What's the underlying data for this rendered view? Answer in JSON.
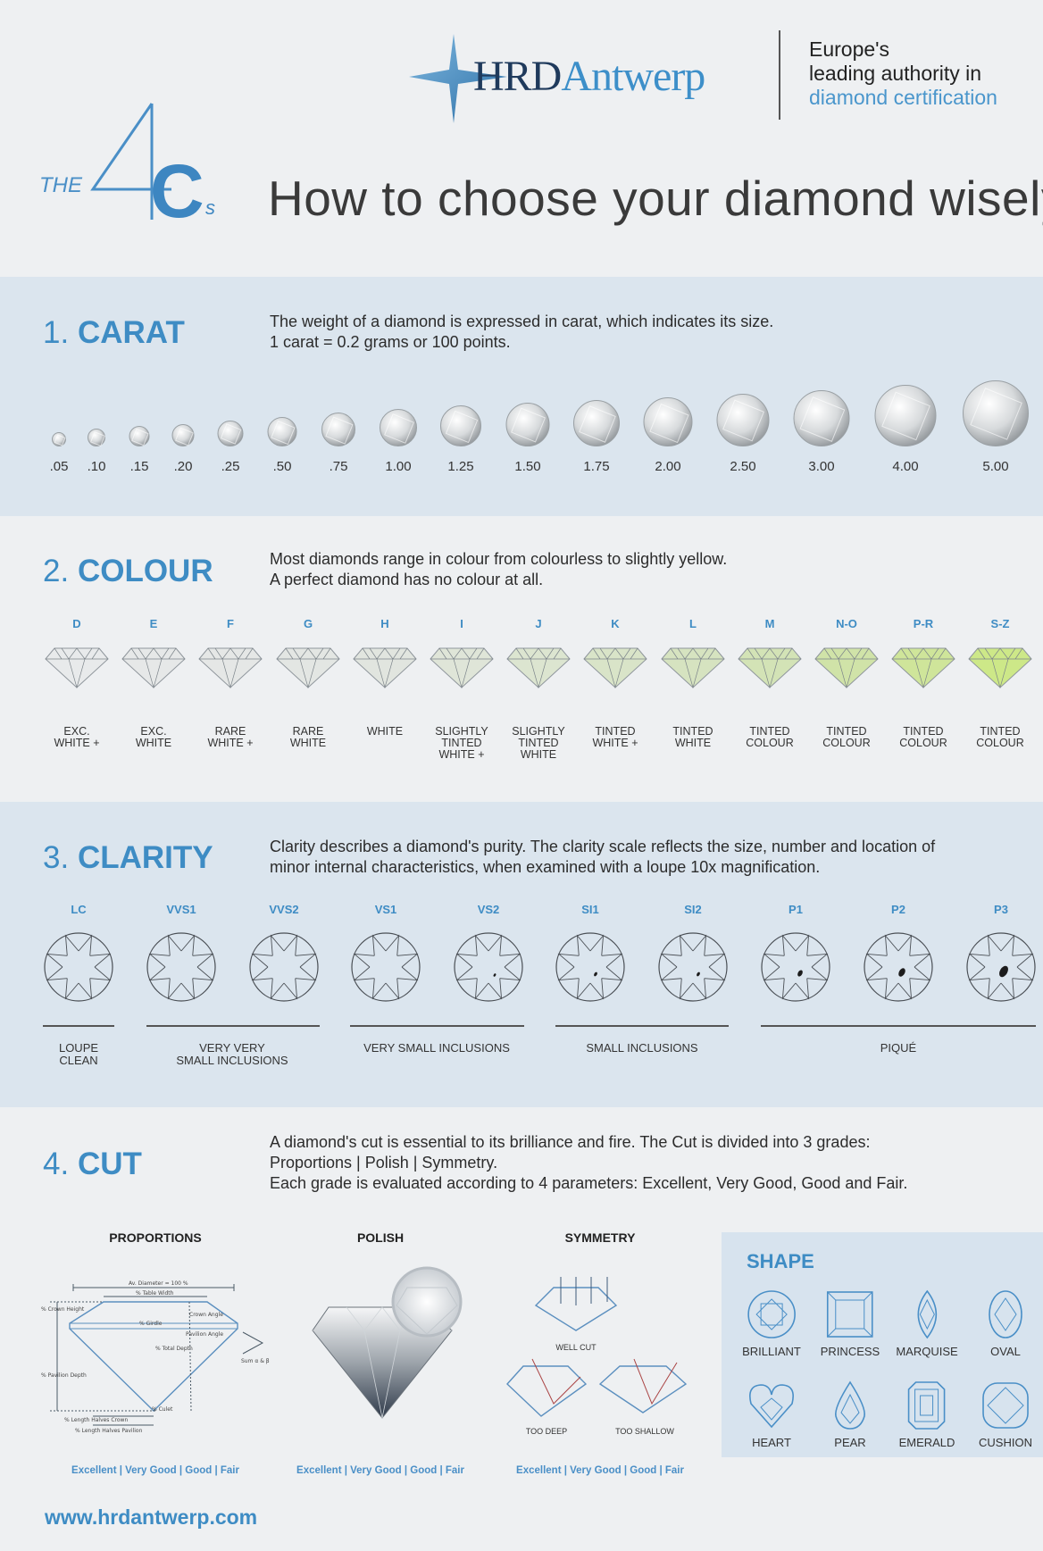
{
  "header": {
    "logo_hrd": "HRD",
    "logo_antwerp": "Antwerp",
    "tagline_line1": "Europe's",
    "tagline_line2": "leading authority in",
    "tagline_line3": "diamond certification",
    "the": "THE",
    "four": "4",
    "c": "C",
    "s": "s",
    "title": "How to choose your diamond wisely"
  },
  "carat": {
    "number": "1.",
    "title": "CARAT",
    "desc1": "The weight of a diamond is expressed in carat, which indicates its size.",
    "desc2": "1 carat = 0.2 grams or 100 points.",
    "weights": [
      ".05",
      ".10",
      ".15",
      ".20",
      ".25",
      ".50",
      ".75",
      "1.00",
      "1.25",
      "1.50",
      "1.75",
      "2.00",
      "2.50",
      "3.00",
      "4.00",
      "5.00"
    ]
  },
  "colour": {
    "number": "2.",
    "title": "COLOUR",
    "desc1": "Most diamonds range in colour from colourless to slightly yellow.",
    "desc2": "A perfect diamond has no colour at all.",
    "grades": [
      {
        "letter": "D",
        "label": "EXC.\nWHITE +",
        "tint": "#e8eaeb"
      },
      {
        "letter": "E",
        "label": "EXC.\nWHITE",
        "tint": "#e6e8e8"
      },
      {
        "letter": "F",
        "label": "RARE\nWHITE +",
        "tint": "#e5e7e6"
      },
      {
        "letter": "G",
        "label": "RARE\nWHITE",
        "tint": "#e3e6e3"
      },
      {
        "letter": "H",
        "label": "WHITE",
        "tint": "#e1e5df"
      },
      {
        "letter": "I",
        "label": "SLIGHTLY\nTINTED\nWHITE +",
        "tint": "#dfe5d8"
      },
      {
        "letter": "J",
        "label": "SLIGHTLY\nTINTED\nWHITE",
        "tint": "#dce5d0"
      },
      {
        "letter": "K",
        "label": "TINTED\nWHITE +",
        "tint": "#d9e4c8"
      },
      {
        "letter": "L",
        "label": "TINTED\nWHITE",
        "tint": "#d6e3c0"
      },
      {
        "letter": "M",
        "label": "TINTED\nCOLOUR",
        "tint": "#d3e3b6"
      },
      {
        "letter": "N-O",
        "label": "TINTED\nCOLOUR",
        "tint": "#d0e3a8"
      },
      {
        "letter": "P-R",
        "label": "TINTED\nCOLOUR",
        "tint": "#cfe59a"
      },
      {
        "letter": "S-Z",
        "label": "TINTED\nCOLOUR",
        "tint": "#cde888"
      }
    ]
  },
  "clarity": {
    "number": "3.",
    "title": "CLARITY",
    "desc1": "Clarity describes a diamond's purity. The clarity scale reflects the size, number and location of",
    "desc2": "minor internal characteristics, when examined with a loupe 10x magnification.",
    "grades": [
      "LC",
      "VVS1",
      "VVS2",
      "VS1",
      "VS2",
      "SI1",
      "SI2",
      "P1",
      "P2",
      "P3"
    ],
    "groups": [
      "LOUPE\nCLEAN",
      "VERY VERY\nSMALL INCLUSIONS",
      "VERY SMALL INCLUSIONS",
      "SMALL INCLUSIONS",
      "PIQUÉ"
    ]
  },
  "cut": {
    "number": "4.",
    "title": "CUT",
    "desc1": "A diamond's cut is essential to its brilliance and fire. The Cut is divided into 3 grades:",
    "desc2": "Proportions | Polish | Symmetry.",
    "desc3": "Each grade is evaluated according to 4 parameters: Excellent, Very Good, Good and Fair.",
    "proportions": "PROPORTIONS",
    "polish": "POLISH",
    "symmetry": "SYMMETRY",
    "scale": "Excellent | Very Good | Good | Fair",
    "well_cut": "WELL CUT",
    "too_deep": "TOO DEEP",
    "too_shallow": "TOO SHALLOW",
    "prop_labels": {
      "diameter": "Av. Diameter = 100 %",
      "table": "% Table Width",
      "crown_height": "% Crown Height",
      "girdle": "% Girdle",
      "crown_angle": "Crown Angle",
      "pavilion_angle": "Pavilion Angle",
      "total_depth": "% Total Depth",
      "sum": "Sum α & β",
      "pavilion_depth": "% Pavilion Depth",
      "culet": "% Culet",
      "halves_crown": "% Length Halves Crown",
      "halves_pavilion": "% Length Halves Pavilion"
    }
  },
  "shape": {
    "title": "SHAPE",
    "items": [
      "BRILLIANT",
      "PRINCESS",
      "MARQUISE",
      "OVAL",
      "HEART",
      "PEAR",
      "EMERALD",
      "CUSHION"
    ]
  },
  "footer": {
    "url": "www.hrdantwerp.com"
  },
  "colors": {
    "accent": "#3e8cc4",
    "band": "#dbe5ee",
    "background": "#eef0f2"
  }
}
